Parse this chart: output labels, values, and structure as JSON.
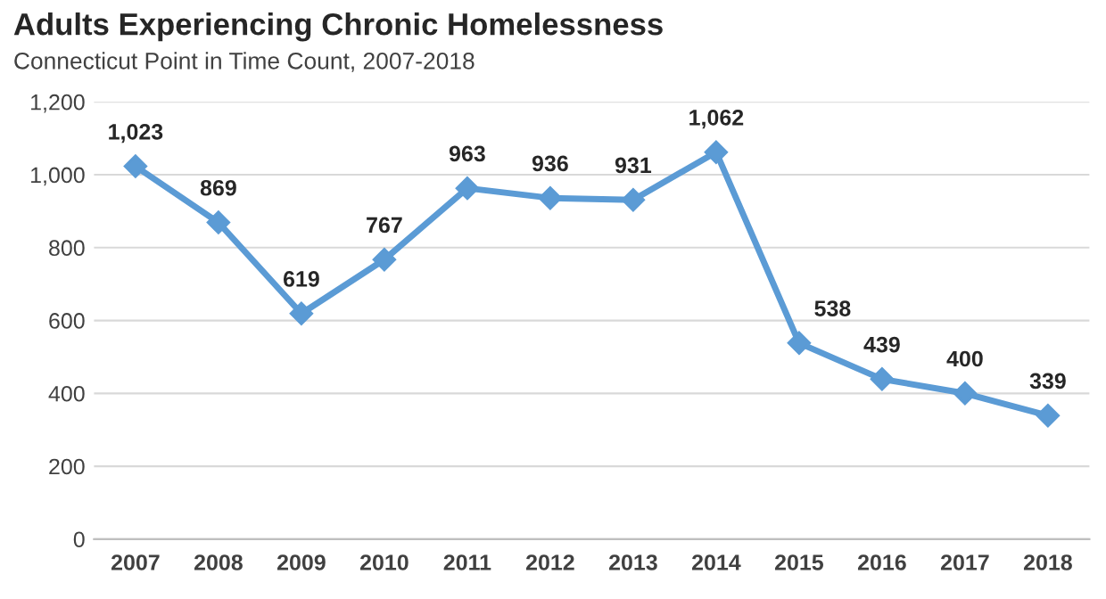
{
  "chart_data": {
    "type": "line",
    "title": "Adults Experiencing Chronic Homelessness",
    "subtitle": "Connecticut Point in Time Count, 2007-2018",
    "categories": [
      "2007",
      "2008",
      "2009",
      "2010",
      "2011",
      "2012",
      "2013",
      "2014",
      "2015",
      "2016",
      "2017",
      "2018"
    ],
    "series": [
      {
        "color": "#5b9bd5",
        "values": [
          1023,
          869,
          619,
          767,
          963,
          936,
          931,
          1062,
          538,
          439,
          400,
          339
        ],
        "value_labels": [
          "1,023",
          "869",
          "619",
          "767",
          "963",
          "936",
          "931",
          "1,062",
          "538",
          "439",
          "400",
          "339"
        ]
      }
    ],
    "ylim": [
      0,
      1200
    ],
    "yticks": [
      0,
      200,
      400,
      600,
      800,
      {
        "value": 1000,
        "label": "1,000"
      },
      {
        "value": 1200,
        "label": "1,200"
      }
    ],
    "grid": "y",
    "marker": "diamond",
    "line_style": "solid"
  }
}
